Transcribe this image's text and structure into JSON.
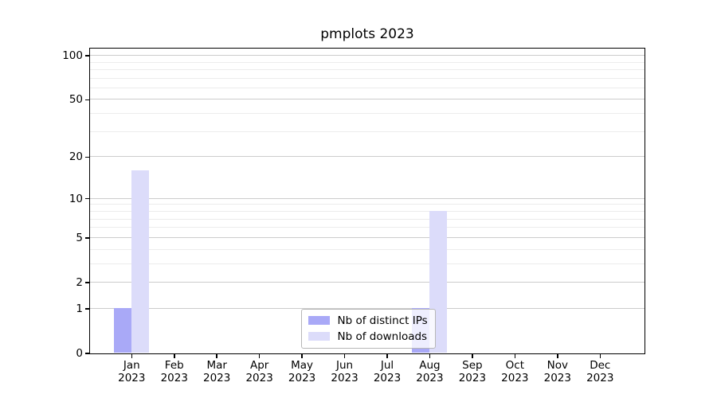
{
  "chart_data": {
    "type": "bar",
    "title": "pmplots 2023",
    "categories": [
      "Jan",
      "Feb",
      "Mar",
      "Apr",
      "May",
      "Jun",
      "Jul",
      "Aug",
      "Sep",
      "Oct",
      "Nov",
      "Dec"
    ],
    "category_year": "2023",
    "series": [
      {
        "name": "Nb of distinct IPs",
        "color": "#a9a9f7",
        "values": [
          1,
          0,
          0,
          0,
          0,
          0,
          0,
          1,
          0,
          0,
          0,
          0
        ]
      },
      {
        "name": "Nb of downloads",
        "color": "#dcdcfa",
        "values": [
          16,
          0,
          0,
          0,
          0,
          0,
          0,
          8,
          0,
          0,
          0,
          0
        ]
      }
    ],
    "y_scale": "log1p",
    "ylim": [
      0,
      112
    ],
    "y_major_ticks": [
      0,
      1,
      2,
      5,
      10,
      20,
      50,
      100
    ],
    "y_minor_ticks": [
      3,
      4,
      6,
      7,
      8,
      9,
      30,
      40,
      60,
      70,
      80,
      90
    ],
    "grid": true,
    "legend_position": "lower-center-inside"
  },
  "colors": {
    "background": "#ffffff",
    "axis": "#000000",
    "major_grid": "#cccccc",
    "minor_grid": "#ececec",
    "legend_border": "#b7b7b7"
  }
}
